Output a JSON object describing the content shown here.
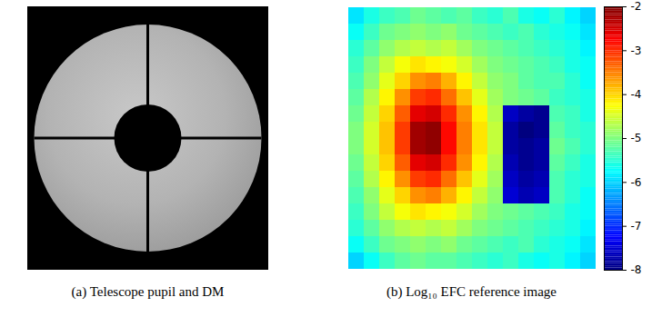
{
  "chart_data": [
    {
      "type": "image",
      "caption": "(a) Telescope pupil and DM",
      "tick_labels": false
    },
    {
      "type": "heatmap",
      "caption": "(b) Log₁₀ EFC reference image",
      "tick_labels": false,
      "colorbar": {
        "range": [
          -8,
          -2
        ],
        "ticks": [
          -2,
          -3,
          -4,
          -5,
          -6,
          -7,
          -8
        ]
      },
      "cells": [
        [
          -5.9,
          -5.6,
          -5.4,
          -5.3,
          -5.1,
          -5.2,
          -5.3,
          -5.2,
          -5.4,
          -5.5,
          -5.3,
          -5.6,
          -5.7,
          -5.5,
          -5.8,
          -6.0
        ],
        [
          -5.7,
          -5.4,
          -5.1,
          -5.0,
          -4.9,
          -5.0,
          -4.9,
          -5.1,
          -5.2,
          -5.3,
          -5.4,
          -5.3,
          -5.5,
          -5.6,
          -5.7,
          -5.9
        ],
        [
          -5.5,
          -5.2,
          -4.9,
          -4.7,
          -4.6,
          -4.7,
          -4.6,
          -4.8,
          -5.0,
          -5.1,
          -5.2,
          -5.3,
          -5.4,
          -5.5,
          -5.6,
          -5.8
        ],
        [
          -5.4,
          -5.0,
          -4.6,
          -4.3,
          -4.1,
          -4.2,
          -4.3,
          -4.5,
          -4.8,
          -5.0,
          -5.1,
          -5.2,
          -5.3,
          -5.4,
          -5.6,
          -5.7
        ],
        [
          -5.3,
          -4.9,
          -4.4,
          -4.0,
          -3.6,
          -3.5,
          -3.8,
          -4.2,
          -4.6,
          -4.9,
          -5.0,
          -5.2,
          -5.3,
          -5.3,
          -5.5,
          -5.7
        ],
        [
          -5.2,
          -4.7,
          -4.2,
          -3.6,
          -3.1,
          -3.0,
          -3.4,
          -3.9,
          -4.4,
          -4.8,
          -5.0,
          -5.1,
          -5.2,
          -5.4,
          -5.5,
          -5.6
        ],
        [
          -5.1,
          -4.6,
          -4.0,
          -3.3,
          -2.6,
          -2.5,
          -3.0,
          -3.6,
          -4.2,
          -4.7,
          -7.6,
          -7.8,
          -7.9,
          -5.3,
          -5.4,
          -5.6
        ],
        [
          -5.0,
          -4.5,
          -3.9,
          -3.1,
          -2.2,
          -2.1,
          -2.8,
          -3.5,
          -4.1,
          -4.6,
          -7.8,
          -8.0,
          -7.9,
          -5.2,
          -5.4,
          -5.5
        ],
        [
          -5.0,
          -4.5,
          -3.9,
          -3.1,
          -2.2,
          -2.1,
          -2.8,
          -3.5,
          -4.1,
          -4.6,
          -7.8,
          -7.9,
          -7.8,
          -5.1,
          -5.3,
          -5.5
        ],
        [
          -5.1,
          -4.6,
          -4.0,
          -3.3,
          -2.6,
          -2.5,
          -3.0,
          -3.6,
          -4.2,
          -4.7,
          -7.7,
          -7.9,
          -7.8,
          -5.2,
          -5.4,
          -5.6
        ],
        [
          -5.2,
          -4.7,
          -4.2,
          -3.6,
          -3.1,
          -3.0,
          -3.4,
          -3.9,
          -4.4,
          -4.8,
          -7.6,
          -7.8,
          -7.7,
          -5.3,
          -5.5,
          -5.6
        ],
        [
          -5.3,
          -4.9,
          -4.4,
          -4.0,
          -3.6,
          -3.5,
          -3.8,
          -4.2,
          -4.6,
          -4.9,
          -7.5,
          -7.7,
          -7.6,
          -5.3,
          -5.5,
          -5.7
        ],
        [
          -5.4,
          -5.0,
          -4.6,
          -4.3,
          -4.1,
          -4.2,
          -4.3,
          -4.5,
          -4.8,
          -5.0,
          -5.1,
          -5.2,
          -5.3,
          -5.4,
          -5.6,
          -5.7
        ],
        [
          -5.5,
          -5.2,
          -4.9,
          -4.7,
          -4.6,
          -4.7,
          -4.6,
          -4.8,
          -5.0,
          -5.1,
          -5.2,
          -5.3,
          -5.4,
          -5.5,
          -5.6,
          -5.8
        ],
        [
          -5.7,
          -5.4,
          -5.1,
          -5.0,
          -4.9,
          -5.0,
          -4.9,
          -5.1,
          -5.2,
          -5.3,
          -5.4,
          -5.3,
          -5.5,
          -5.6,
          -5.7,
          -5.9
        ],
        [
          -6.0,
          -5.7,
          -5.4,
          -5.2,
          -5.1,
          -5.2,
          -5.2,
          -5.3,
          -5.4,
          -5.5,
          -5.4,
          -5.6,
          -5.7,
          -5.6,
          -5.8,
          -6.0
        ]
      ]
    }
  ]
}
